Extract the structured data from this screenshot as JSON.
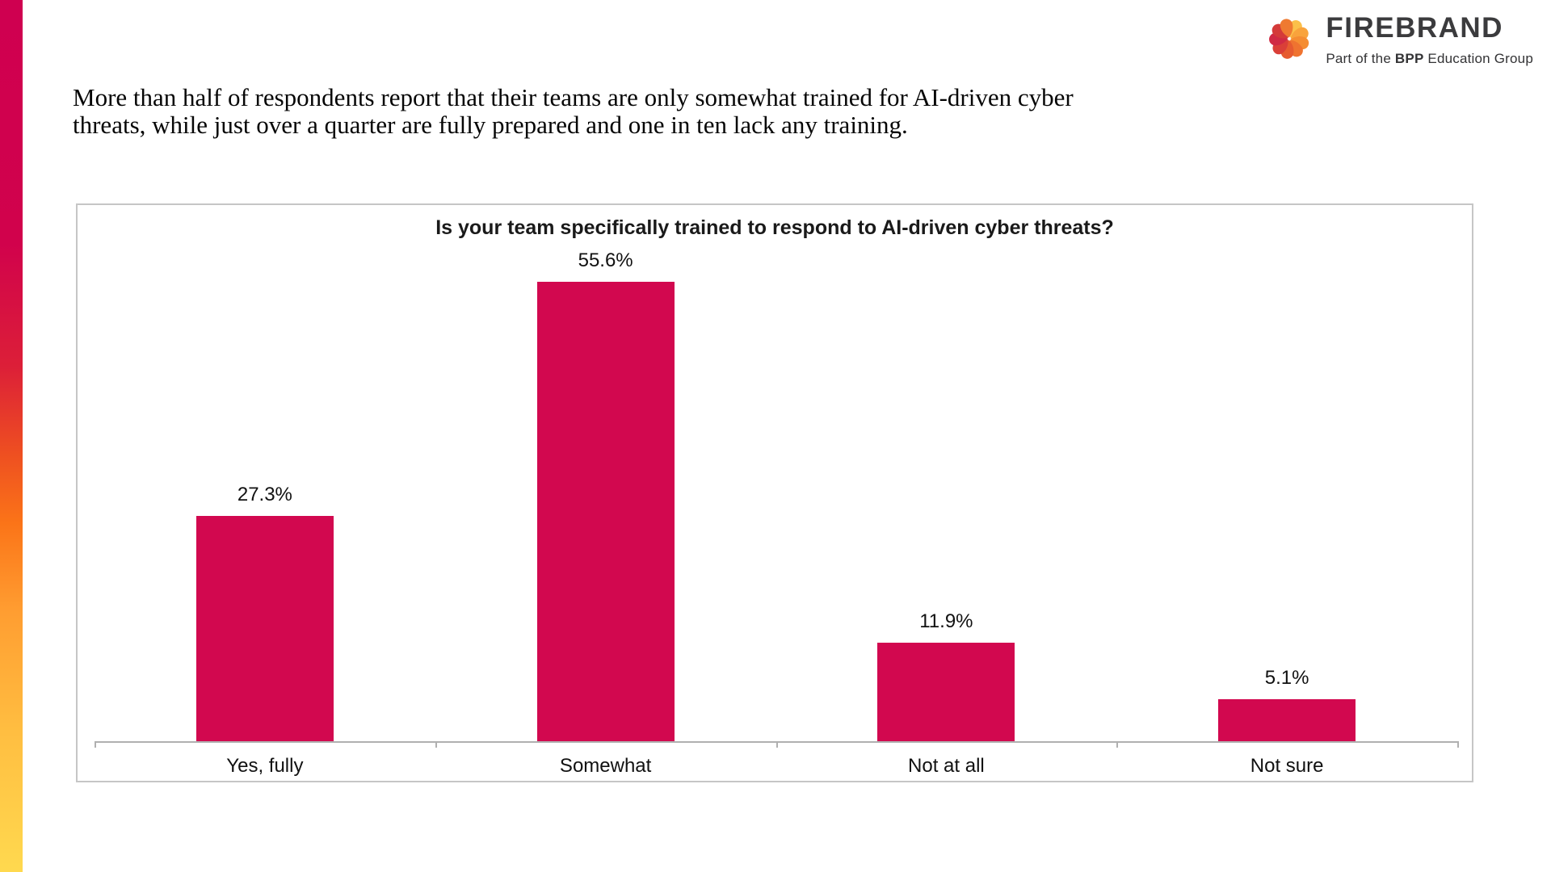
{
  "brand": {
    "name": "FIREBRAND",
    "tagline_prefix": "Part of the ",
    "tagline_bold": "BPP",
    "tagline_suffix": " Education Group",
    "name_color": "#3b3b3d",
    "logo_petal_colors": [
      "#fbc04a",
      "#f9a33c",
      "#f58d32",
      "#ef7330",
      "#e65b30",
      "#da3f38",
      "#d02a44",
      "#d43a39",
      "#ef7a31"
    ]
  },
  "headline": {
    "line1": "More than half of respondents report that their teams are only somewhat trained for AI-driven cyber",
    "line2": "threats, while just over a quarter are fully prepared and one in ten lack any training."
  },
  "chart_data": {
    "type": "bar",
    "title": "Is your team specifically trained to respond to AI-driven cyber threats?",
    "categories": [
      "Yes, fully",
      "Somewhat",
      "Not at all",
      "Not sure"
    ],
    "values": [
      27.3,
      55.6,
      11.9,
      5.1
    ],
    "value_labels": [
      "27.3%",
      "55.6%",
      "11.9%",
      "5.1%"
    ],
    "bar_color": "#d2084f",
    "xlabel": "",
    "ylabel": "",
    "ylim": [
      0,
      65
    ],
    "grid": false,
    "legend": "none",
    "axis_color": "#b0b0b0"
  },
  "page": {
    "accent_gradient": [
      "#cf0050",
      "#dc1f38",
      "#fb7418",
      "#ff9d31",
      "#ffd94f"
    ]
  }
}
